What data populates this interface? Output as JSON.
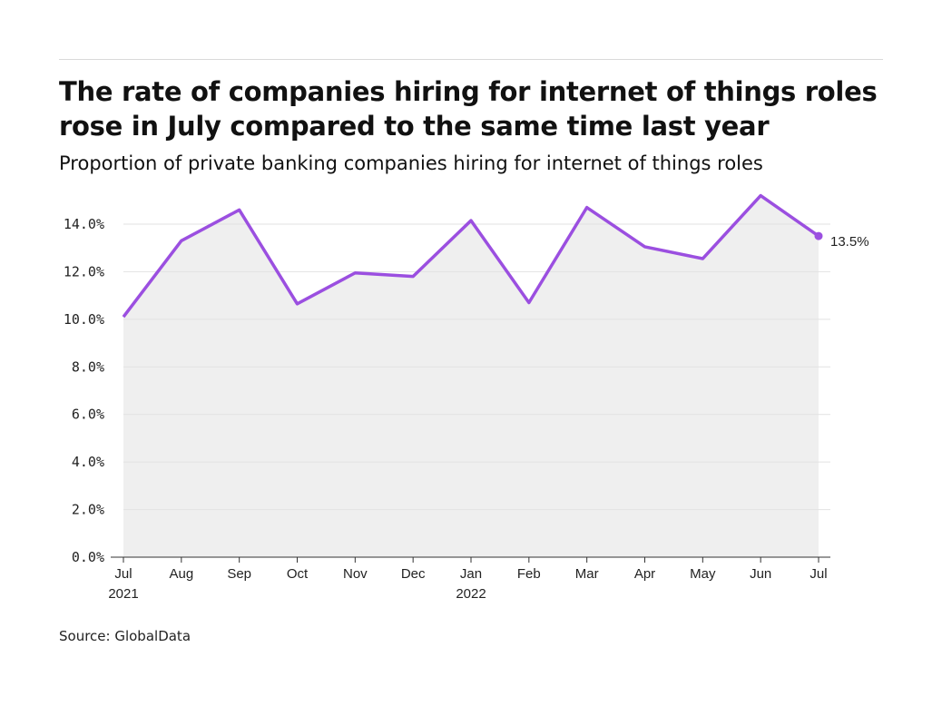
{
  "title": "The rate of companies hiring for internet of things roles rose in July compared to the same time last year",
  "subtitle": "Proportion of private banking companies hiring for internet of things roles",
  "source": "Source: GlobalData",
  "chart_data": {
    "type": "area",
    "categories": [
      "Jul 2021",
      "Aug",
      "Sep",
      "Oct",
      "Nov",
      "Dec",
      "Jan 2022",
      "Feb",
      "Mar",
      "Apr",
      "May",
      "Jun",
      "Jul"
    ],
    "x_tick_labels": [
      [
        "Jul",
        "2021"
      ],
      [
        "Aug"
      ],
      [
        "Sep"
      ],
      [
        "Oct"
      ],
      [
        "Nov"
      ],
      [
        "Dec"
      ],
      [
        "Jan",
        "2022"
      ],
      [
        "Feb"
      ],
      [
        "Mar"
      ],
      [
        "Apr"
      ],
      [
        "May"
      ],
      [
        "Jun"
      ],
      [
        "Jul"
      ]
    ],
    "values": [
      10.1,
      13.3,
      14.6,
      10.65,
      11.95,
      11.8,
      14.15,
      10.7,
      14.7,
      13.05,
      12.55,
      15.2,
      13.5
    ],
    "ylim": [
      0,
      14
    ],
    "y_ticks": [
      0,
      2,
      4,
      6,
      8,
      10,
      12,
      14
    ],
    "y_tick_labels": [
      "0.0%",
      "2.0%",
      "4.0%",
      "6.0%",
      "8.0%",
      "10.0%",
      "12.0%",
      "14.0%"
    ],
    "end_label": "13.5%",
    "grid": true,
    "line_color": "#9b4fe0",
    "fill_color": "#efefef"
  }
}
